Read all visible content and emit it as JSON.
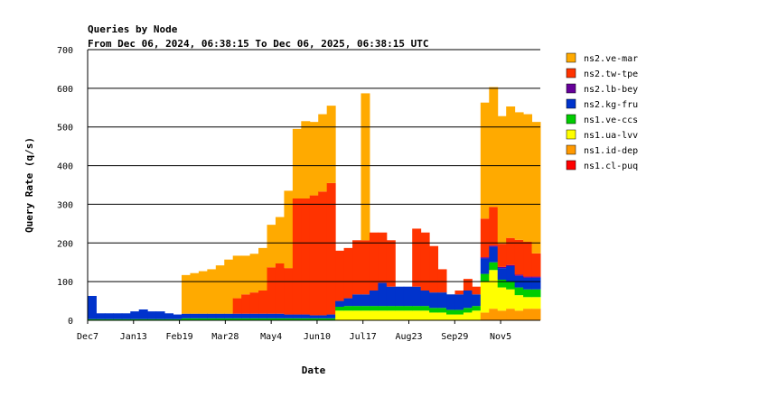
{
  "chart_data": {
    "type": "area",
    "stacked": true,
    "title": "Queries by Node",
    "subtitle": "From Dec 06, 2024, 06:38:15 To Dec 06, 2025, 06:38:15 UTC",
    "xlabel": "Date",
    "ylabel": "Query Rate (q/s)",
    "ylim": [
      0,
      700
    ],
    "yticks": [
      "0",
      "100",
      "200",
      "300",
      "400",
      "500",
      "600",
      "700"
    ],
    "xticks": [
      {
        "label": "Dec7",
        "day": 0
      },
      {
        "label": "Jan13",
        "day": 37
      },
      {
        "label": "Feb19",
        "day": 74
      },
      {
        "label": "Mar28",
        "day": 111
      },
      {
        "label": "May4",
        "day": 148
      },
      {
        "label": "Jun10",
        "day": 185
      },
      {
        "label": "Jul17",
        "day": 222
      },
      {
        "label": "Aug23",
        "day": 259
      },
      {
        "label": "Sep29",
        "day": 296
      },
      {
        "label": "Nov5",
        "day": 333
      }
    ],
    "x_unit": "week index from Dec 7 (53 weeks)",
    "grid": true,
    "legend_position": "right",
    "series": [
      {
        "name": "ns1.cl-puq",
        "color": "#ff0000",
        "values": [
          0,
          0,
          0,
          0,
          0,
          0,
          0,
          0,
          0,
          0,
          0,
          0,
          0,
          0,
          0,
          0,
          0,
          0,
          0,
          0,
          0,
          0,
          0,
          0,
          0,
          0,
          0,
          0,
          0,
          0,
          0,
          0,
          0,
          0,
          0,
          0,
          0,
          0,
          0,
          0,
          0,
          0,
          0,
          0,
          0,
          0,
          0,
          0,
          0,
          0,
          0,
          0,
          0
        ]
      },
      {
        "name": "ns1.id-dep",
        "color": "#ff9900",
        "values": [
          0,
          0,
          0,
          0,
          0,
          0,
          0,
          0,
          0,
          0,
          0,
          0,
          0,
          0,
          0,
          0,
          0,
          0,
          0,
          0,
          0,
          0,
          0,
          0,
          0,
          0,
          0,
          0,
          0,
          0,
          0,
          0,
          0,
          0,
          0,
          0,
          0,
          0,
          0,
          0,
          0,
          0,
          0,
          0,
          0,
          0,
          20,
          30,
          25,
          30,
          25,
          30,
          30
        ]
      },
      {
        "name": "ns1.ua-lvv",
        "color": "#ffff00",
        "values": [
          0,
          0,
          0,
          0,
          0,
          0,
          0,
          0,
          0,
          0,
          0,
          0,
          0,
          0,
          0,
          0,
          0,
          0,
          0,
          0,
          0,
          0,
          0,
          0,
          0,
          0,
          0,
          0,
          0,
          25,
          25,
          25,
          25,
          25,
          25,
          25,
          25,
          25,
          25,
          25,
          20,
          20,
          15,
          15,
          20,
          25,
          80,
          100,
          60,
          50,
          40,
          30,
          30
        ]
      },
      {
        "name": "ns1.ve-ccs",
        "color": "#00cc00",
        "values": [
          3,
          3,
          3,
          3,
          3,
          3,
          3,
          3,
          3,
          3,
          3,
          5,
          5,
          5,
          5,
          5,
          5,
          5,
          5,
          5,
          5,
          5,
          5,
          5,
          5,
          5,
          5,
          5,
          5,
          10,
          12,
          12,
          12,
          12,
          12,
          12,
          12,
          12,
          12,
          12,
          12,
          12,
          12,
          12,
          12,
          12,
          20,
          20,
          20,
          20,
          20,
          20,
          20
        ]
      },
      {
        "name": "ns2.kg-fru",
        "color": "#0033cc",
        "values": [
          60,
          15,
          15,
          15,
          15,
          20,
          25,
          20,
          20,
          15,
          12,
          12,
          12,
          12,
          12,
          12,
          12,
          12,
          12,
          12,
          12,
          12,
          12,
          10,
          10,
          10,
          8,
          8,
          10,
          15,
          20,
          30,
          30,
          40,
          60,
          50,
          50,
          50,
          50,
          40,
          40,
          40,
          40,
          40,
          45,
          30,
          40,
          40,
          30,
          40,
          30,
          30,
          30
        ]
      },
      {
        "name": "ns2.lb-bey",
        "color": "#660099",
        "values": [
          0,
          0,
          0,
          0,
          0,
          0,
          0,
          0,
          0,
          0,
          0,
          0,
          0,
          0,
          0,
          0,
          0,
          0,
          0,
          0,
          0,
          0,
          0,
          0,
          0,
          0,
          0,
          0,
          0,
          0,
          0,
          0,
          0,
          0,
          0,
          0,
          0,
          0,
          0,
          0,
          0,
          0,
          0,
          0,
          0,
          0,
          3,
          3,
          3,
          3,
          3,
          3,
          3
        ]
      },
      {
        "name": "ns2.tw-tpe",
        "color": "#ff3300",
        "values": [
          0,
          0,
          0,
          0,
          0,
          0,
          0,
          0,
          0,
          0,
          0,
          0,
          0,
          0,
          0,
          0,
          0,
          40,
          50,
          55,
          60,
          120,
          130,
          120,
          300,
          300,
          310,
          320,
          340,
          130,
          130,
          140,
          140,
          150,
          130,
          120,
          0,
          0,
          150,
          150,
          120,
          60,
          0,
          10,
          30,
          20,
          100,
          100,
          60,
          70,
          90,
          90,
          60
        ]
      },
      {
        "name": "ns2.ve-mar",
        "color": "#ffaa00",
        "values": [
          0,
          0,
          0,
          0,
          0,
          0,
          0,
          0,
          0,
          0,
          0,
          100,
          105,
          110,
          115,
          125,
          140,
          110,
          100,
          100,
          110,
          110,
          120,
          200,
          180,
          200,
          190,
          200,
          200,
          0,
          0,
          0,
          380,
          0,
          0,
          0,
          0,
          0,
          0,
          0,
          0,
          0,
          0,
          0,
          0,
          0,
          300,
          310,
          330,
          340,
          330,
          330,
          340
        ]
      }
    ]
  }
}
